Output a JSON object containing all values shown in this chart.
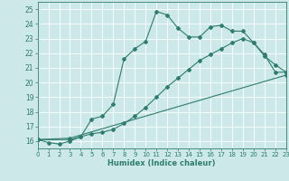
{
  "title": "",
  "xlabel": "Humidex (Indice chaleur)",
  "xlim": [
    0,
    23
  ],
  "ylim": [
    15.5,
    25.5
  ],
  "yticks": [
    16,
    17,
    18,
    19,
    20,
    21,
    22,
    23,
    24,
    25
  ],
  "xticks": [
    0,
    1,
    2,
    3,
    4,
    5,
    6,
    7,
    8,
    9,
    10,
    11,
    12,
    13,
    14,
    15,
    16,
    17,
    18,
    19,
    20,
    21,
    22,
    23
  ],
  "bg_color": "#cce8e8",
  "grid_color": "#b0d0d0",
  "line_color": "#2e7d6e",
  "line1_x": [
    0,
    1,
    2,
    3,
    4,
    5,
    6,
    7,
    8,
    9,
    10,
    11,
    12,
    13,
    14,
    15,
    16,
    17,
    18,
    19,
    20,
    21,
    22,
    23
  ],
  "line1_y": [
    16.1,
    15.9,
    15.8,
    16.0,
    16.3,
    17.5,
    17.7,
    18.5,
    21.6,
    22.3,
    22.8,
    24.85,
    24.6,
    23.7,
    23.1,
    23.1,
    23.8,
    23.9,
    23.5,
    23.5,
    22.7,
    21.9,
    20.7,
    20.7
  ],
  "line2_x": [
    0,
    3,
    4,
    5,
    6,
    7,
    8,
    9,
    10,
    11,
    12,
    13,
    14,
    15,
    16,
    17,
    18,
    19,
    20,
    21,
    22,
    23
  ],
  "line2_y": [
    16.1,
    16.1,
    16.3,
    16.5,
    16.6,
    16.8,
    17.2,
    17.7,
    18.3,
    19.0,
    19.7,
    20.3,
    20.9,
    21.5,
    21.9,
    22.3,
    22.7,
    23.0,
    22.7,
    21.8,
    21.2,
    20.7
  ],
  "line3_x": [
    0,
    3,
    23
  ],
  "line3_y": [
    16.1,
    16.2,
    20.5
  ]
}
